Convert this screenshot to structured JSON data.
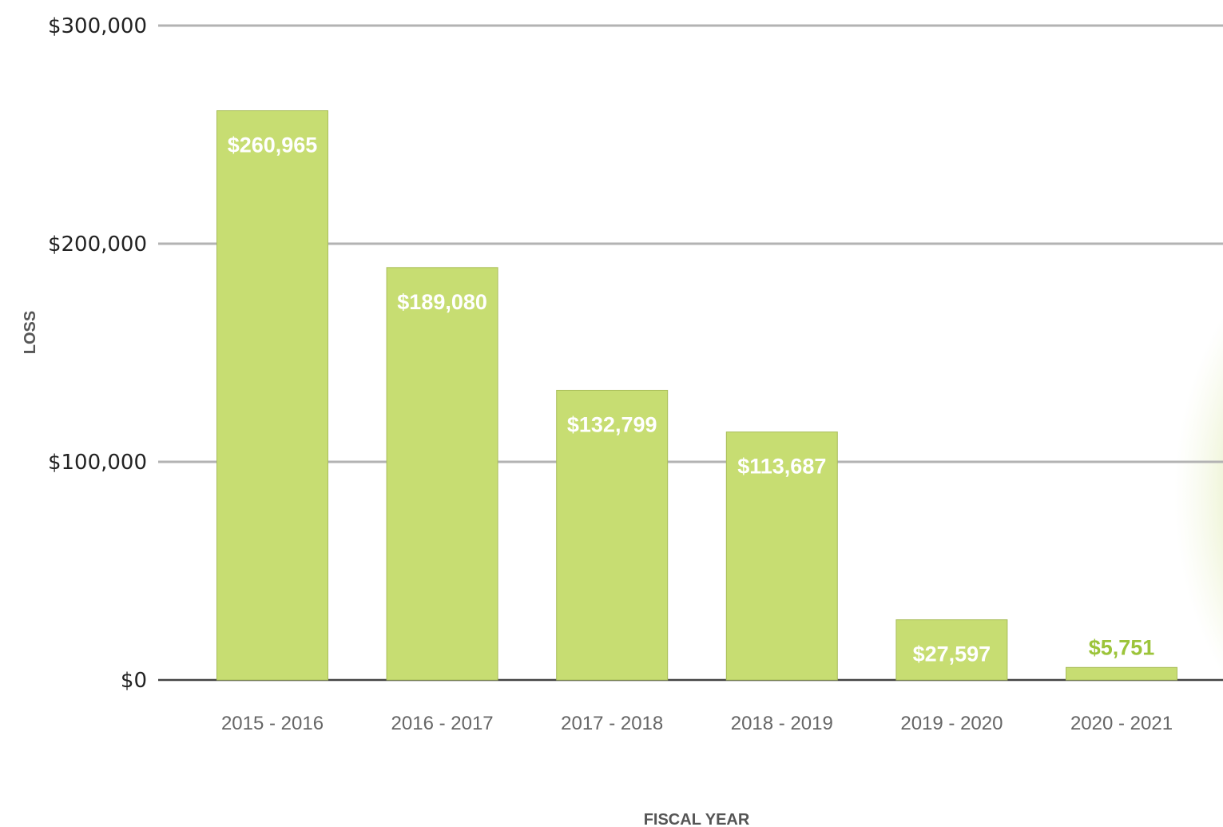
{
  "chart_data": {
    "type": "bar",
    "categories": [
      "2015 - 2016",
      "2016 - 2017",
      "2017 - 2018",
      "2018 - 2019",
      "2019 - 2020",
      "2020 - 2021"
    ],
    "values": [
      260965,
      189080,
      132799,
      113687,
      27597,
      5751
    ],
    "data_labels": [
      "$260,965",
      "$189,080",
      "$132,799",
      "$113,687",
      "$27,597",
      "$5,751"
    ],
    "ytick_labels": [
      "$0",
      "$100,000",
      "$200,000",
      "$300,000"
    ],
    "ytick_values": [
      0,
      100000,
      200000,
      300000
    ],
    "ylim": [
      0,
      300000
    ],
    "xlabel": "FISCAL YEAR",
    "ylabel": "LOSS",
    "grid": true,
    "colors": {
      "bar": "#c7dd72",
      "bar_edge": "#a9bd5a",
      "label_inside": "#ffffff",
      "label_outside": "#9cc43a",
      "gridline": "#b3b3b3",
      "baseline": "#444444"
    }
  }
}
